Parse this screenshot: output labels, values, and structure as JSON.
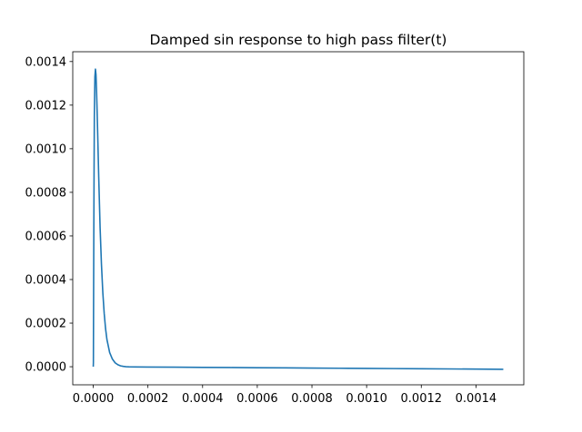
{
  "chart_data": {
    "type": "line",
    "title": "Damped sin response to high pass filter(t)",
    "xlabel": "",
    "ylabel": "",
    "xlim": [
      -7.5e-05,
      0.001575
    ],
    "ylim": [
      -8.3e-05,
      0.001445
    ],
    "x_ticks": [
      0.0,
      0.0002,
      0.0004,
      0.0006,
      0.0008,
      0.001,
      0.0012,
      0.0014
    ],
    "x_tick_labels": [
      "0.0000",
      "0.0002",
      "0.0004",
      "0.0006",
      "0.0008",
      "0.0010",
      "0.0012",
      "0.0014"
    ],
    "y_ticks": [
      0.0,
      0.0002,
      0.0004,
      0.0006,
      0.0008,
      0.001,
      0.0012,
      0.0014
    ],
    "y_tick_labels": [
      "0.0000",
      "0.0002",
      "0.0004",
      "0.0006",
      "0.0008",
      "0.0010",
      "0.0012",
      "0.0014"
    ],
    "grid": false,
    "series": [
      {
        "color": "#1f77b4",
        "x": [
          0.0,
          5e-07,
          1e-06,
          2e-06,
          3e-06,
          4e-06,
          6e-06,
          8e-06,
          1e-05,
          1.2e-05,
          1.4e-05,
          1.6e-05,
          2e-05,
          2.5e-05,
          3e-05,
          3.5e-05,
          4e-05,
          4.5e-05,
          5e-05,
          6e-05,
          7e-05,
          8e-05,
          9e-05,
          0.0001,
          0.00011,
          0.00012,
          0.00013,
          0.00015,
          0.0002,
          0.0003,
          0.0004,
          0.0005,
          0.0006,
          0.0007,
          0.0008,
          0.0009,
          0.001,
          0.0011,
          0.0012,
          0.0013,
          0.0014,
          0.0015
        ],
        "y": [
          0.0,
          2e-05,
          0.00022,
          0.0006,
          0.0009,
          0.00115,
          0.00133,
          0.001365,
          0.00134,
          0.00127,
          0.00118,
          0.00108,
          0.00087,
          0.00064,
          0.00047,
          0.00034,
          0.000245,
          0.000175,
          0.000125,
          6.5e-05,
          3.5e-05,
          1.8e-05,
          9e-06,
          4e-06,
          1.5e-06,
          2e-07,
          -5e-07,
          -1e-06,
          -1.5e-06,
          -2.2e-06,
          -3e-06,
          -3.8e-06,
          -4.6e-06,
          -5.4e-06,
          -6.2e-06,
          -7e-06,
          -7.8e-06,
          -8.6e-06,
          -9.4e-06,
          -1.02e-05,
          -1.1e-05,
          -1.18e-05
        ]
      }
    ]
  }
}
